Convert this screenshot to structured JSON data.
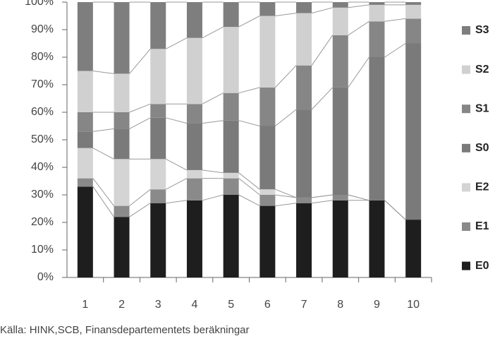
{
  "chart_data": {
    "type": "stacked_bar",
    "categories": [
      "1",
      "2",
      "3",
      "4",
      "5",
      "6",
      "7",
      "8",
      "9",
      "10"
    ],
    "series": [
      {
        "name": "E0",
        "color": "#1e1e1e",
        "values": [
          33,
          22,
          27,
          28,
          30,
          26,
          27,
          28,
          28,
          21
        ]
      },
      {
        "name": "E1",
        "color": "#8a8a8a",
        "values": [
          3,
          4,
          5,
          8,
          6,
          4,
          2,
          2,
          0,
          0
        ]
      },
      {
        "name": "E2",
        "color": "#d4d4d4",
        "values": [
          11,
          17,
          11,
          3,
          2,
          2,
          0,
          0,
          0,
          0
        ]
      },
      {
        "name": "S0",
        "color": "#7a7a7a",
        "values": [
          6,
          11,
          15,
          17,
          19,
          23,
          32,
          39,
          52,
          64
        ]
      },
      {
        "name": "S1",
        "color": "#868686",
        "values": [
          7,
          6,
          5,
          7,
          10,
          14,
          16,
          19,
          13,
          9
        ]
      },
      {
        "name": "S2",
        "color": "#d0d0d0",
        "values": [
          15,
          14,
          20,
          24,
          24,
          26,
          19,
          10,
          6,
          5
        ]
      },
      {
        "name": "S3",
        "color": "#7e7e7e",
        "values": [
          25,
          26,
          17,
          13,
          9,
          5,
          4,
          2,
          1,
          1
        ]
      }
    ],
    "ylim": [
      0,
      100
    ],
    "yticks": [
      {
        "value": 0,
        "label": "0%"
      },
      {
        "value": 10,
        "label": "10%"
      },
      {
        "value": 20,
        "label": "20%"
      },
      {
        "value": 30,
        "label": "30%"
      },
      {
        "value": 40,
        "label": "40%"
      },
      {
        "value": 50,
        "label": "50%"
      },
      {
        "value": 60,
        "label": "60%"
      },
      {
        "value": 70,
        "label": "70%"
      },
      {
        "value": 80,
        "label": "80%"
      },
      {
        "value": 90,
        "label": "90%"
      },
      {
        "value": 100,
        "label": "100%"
      }
    ],
    "source": "Källa: HINK,SCB, Finansdepartementets beräkningar"
  }
}
